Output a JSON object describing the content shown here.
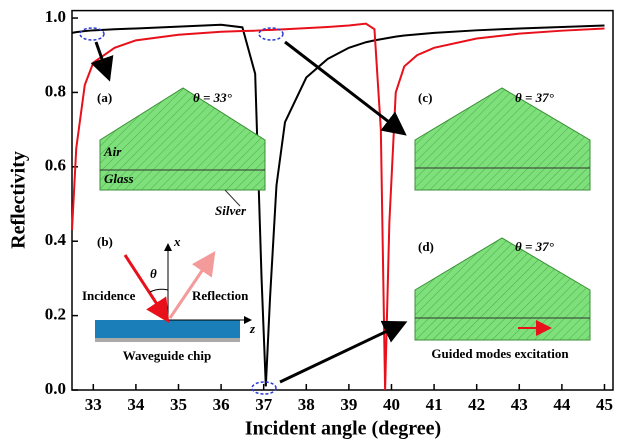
{
  "chart_data": {
    "type": "line",
    "x_label": "Incident angle (degree)",
    "y_label": "Reflectivity",
    "x": [
      32.5,
      32.6,
      32.8,
      33,
      33.5,
      34,
      35,
      36,
      36.5,
      36.8,
      36.95,
      37.05,
      37.15,
      37.3,
      37.5,
      38,
      38.5,
      39,
      39.4,
      39.6,
      39.75,
      39.85,
      39.95,
      40.1,
      40.3,
      40.6,
      41,
      42,
      43,
      44,
      45
    ],
    "series": [
      {
        "color": "#000000",
        "values": [
          0.96,
          0.962,
          0.965,
          0.967,
          0.97,
          0.972,
          0.977,
          0.982,
          0.975,
          0.85,
          0.3,
          0.01,
          0.25,
          0.55,
          0.72,
          0.84,
          0.89,
          0.92,
          0.935,
          0.94,
          0.943,
          0.945,
          0.947,
          0.95,
          0.953,
          0.956,
          0.96,
          0.967,
          0.972,
          0.976,
          0.98
        ]
      },
      {
        "color": "#e8101a",
        "values": [
          0.43,
          0.65,
          0.82,
          0.88,
          0.92,
          0.94,
          0.955,
          0.963,
          0.965,
          0.966,
          0.967,
          0.968,
          0.968,
          0.969,
          0.97,
          0.973,
          0.976,
          0.98,
          0.985,
          0.97,
          0.7,
          0.0,
          0.45,
          0.8,
          0.87,
          0.9,
          0.92,
          0.945,
          0.958,
          0.966,
          0.972
        ]
      }
    ],
    "xlim": [
      32.5,
      45.2
    ],
    "ylim": [
      0,
      1.02
    ],
    "xticks": [
      33,
      34,
      35,
      36,
      37,
      38,
      39,
      40,
      41,
      42,
      43,
      44,
      45
    ],
    "yticks": [
      {
        "value": 0,
        "label": "0.0"
      },
      {
        "value": 0.2,
        "label": "0.2"
      },
      {
        "value": 0.4,
        "label": "0.4"
      },
      {
        "value": 0.6,
        "label": "0.6"
      },
      {
        "value": 0.8,
        "label": "0.8"
      },
      {
        "value": 1,
        "label": "1.0"
      }
    ],
    "annotations": [
      "(a)",
      "θ = 33°",
      "Air",
      "Glass",
      "Silver",
      "(b)",
      "x",
      "θ",
      "Incidence",
      "Reflection",
      "z",
      "Waveguide chip",
      "(c)",
      "θ = 37°",
      "(d)",
      "θ = 37°",
      "Guided modes excitation"
    ]
  }
}
